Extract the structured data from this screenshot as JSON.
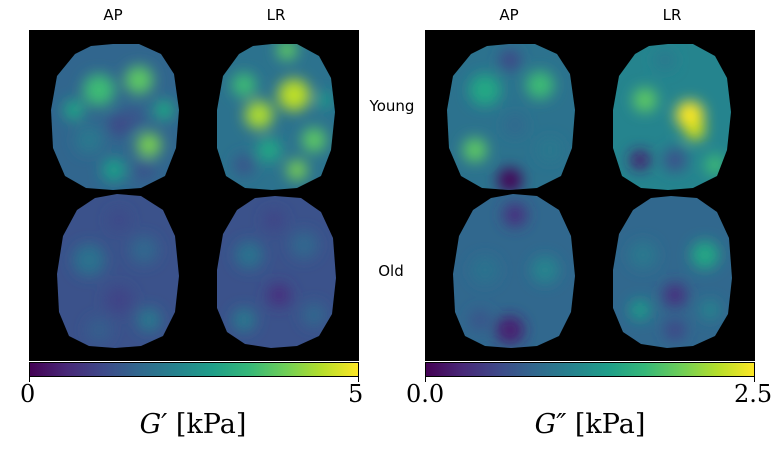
{
  "figure": {
    "column_labels": [
      "AP",
      "LR"
    ],
    "row_labels": [
      "Young",
      "Old"
    ],
    "panels": [
      {
        "id": "storage-modulus",
        "colorbar": {
          "min_label": "0",
          "max_label": "5",
          "colormap": "viridis",
          "title_symbol": "G′",
          "title_unit": "[kPa]"
        }
      },
      {
        "id": "loss-modulus",
        "colorbar": {
          "min_label": "0.0",
          "max_label": "2.5",
          "colormap": "viridis",
          "title_symbol": "G″",
          "title_unit": "[kPa]"
        }
      }
    ],
    "colors": {
      "background": "#000000",
      "viridis": [
        "#440154",
        "#3b528b",
        "#21908c",
        "#5dc963",
        "#fde725"
      ]
    }
  }
}
